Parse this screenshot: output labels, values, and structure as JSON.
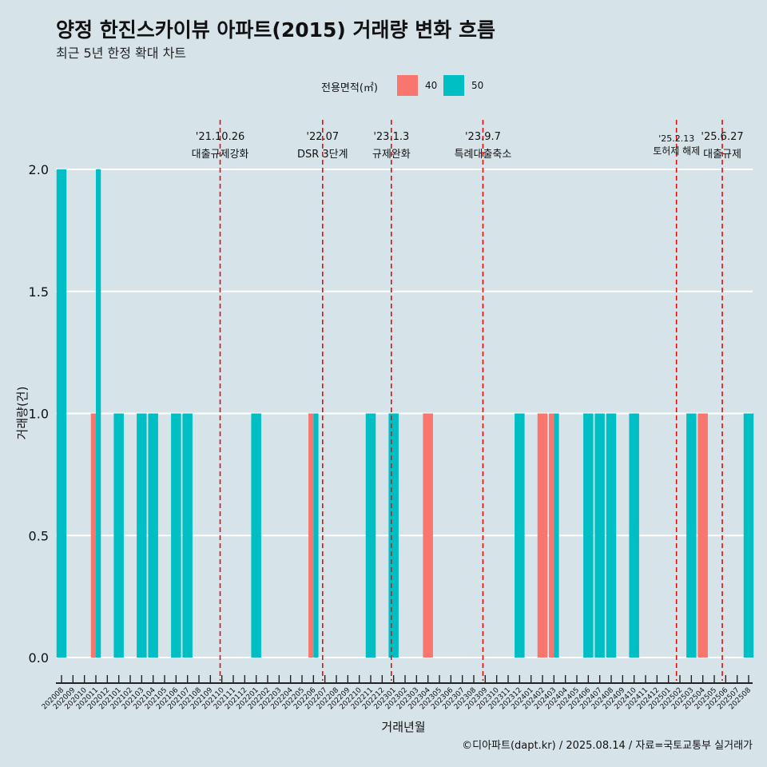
{
  "page": {
    "title": "양정 한진스카이뷰 아파트(2015) 거래량 변화 흐름",
    "subtitle": "최근 5년 한정 확대 차트",
    "caption": "©디아파트(dapt.kr) / 2025.08.14 / 자료=국토교통부 실거래가"
  },
  "legend": {
    "title": "전용면적(㎡)",
    "items": [
      {
        "label": "40",
        "color": "#f8766d"
      },
      {
        "label": "50",
        "color": "#00bfc4"
      }
    ]
  },
  "chart_data": {
    "type": "bar",
    "xlabel": "거래년월",
    "ylabel": "거래량(건)",
    "ylim": [
      -0.17,
      2.22
    ],
    "yticks": [
      "0.0",
      "0.5",
      "1.0",
      "1.5",
      "2.0"
    ],
    "ytick_values": [
      0,
      0.5,
      1.0,
      1.5,
      2.0
    ],
    "grid": true,
    "categories": [
      "202008",
      "202009",
      "202010",
      "202011",
      "202012",
      "202101",
      "202102",
      "202103",
      "202104",
      "202105",
      "202106",
      "202107",
      "202108",
      "202109",
      "202110",
      "202111",
      "202112",
      "202201",
      "202202",
      "202203",
      "202204",
      "202205",
      "202206",
      "202207",
      "202208",
      "202209",
      "202210",
      "202211",
      "202212",
      "202301",
      "202302",
      "202303",
      "202304",
      "202305",
      "202306",
      "202307",
      "202308",
      "202309",
      "202310",
      "202311",
      "202312",
      "202401",
      "202402",
      "202403",
      "202404",
      "202405",
      "202406",
      "202407",
      "202408",
      "202409",
      "202410",
      "202411",
      "202412",
      "202501",
      "202502",
      "202503",
      "202504",
      "202505",
      "202506",
      "202507",
      "202508"
    ],
    "series": [
      {
        "name": "40",
        "color": "#f8766d",
        "values": [
          0,
          0,
          0,
          1,
          0,
          0,
          0,
          0,
          0,
          0,
          0,
          0,
          0,
          0,
          0,
          0,
          0,
          0,
          0,
          0,
          0,
          0,
          1,
          0,
          0,
          0,
          0,
          0,
          0,
          0,
          0,
          0,
          1,
          0,
          0,
          0,
          0,
          0,
          0,
          0,
          0,
          0,
          1,
          1,
          0,
          0,
          0,
          0,
          0,
          0,
          0,
          0,
          0,
          0,
          0,
          0,
          1,
          0,
          0,
          0,
          0
        ]
      },
      {
        "name": "50",
        "color": "#00bfc4",
        "values": [
          2,
          0,
          0,
          2,
          0,
          1,
          0,
          1,
          1,
          0,
          1,
          1,
          0,
          0,
          0,
          0,
          0,
          1,
          0,
          0,
          0,
          0,
          1,
          0,
          0,
          0,
          0,
          1,
          0,
          1,
          0,
          0,
          0,
          0,
          0,
          0,
          0,
          0,
          0,
          0,
          1,
          0,
          0,
          1,
          0,
          0,
          1,
          1,
          1,
          0,
          1,
          0,
          0,
          0,
          0,
          1,
          0,
          0,
          0,
          0,
          1
        ]
      }
    ],
    "annotations": [
      {
        "date": "'21.10.26",
        "text": "대출규제강화",
        "x": 13.85
      },
      {
        "date": "'22.07",
        "text": "DSR 3단계",
        "x": 22.8
      },
      {
        "date": "'23.1.3",
        "text": "규제완화",
        "x": 28.8
      },
      {
        "date": "'23.9.7",
        "text": "특례대출축소",
        "x": 36.8
      },
      {
        "date": "'25.2.13",
        "text": "토허제 해제",
        "x": 53.7
      },
      {
        "date": "'25.6.27",
        "text": "대출규제",
        "x": 57.7
      }
    ]
  }
}
